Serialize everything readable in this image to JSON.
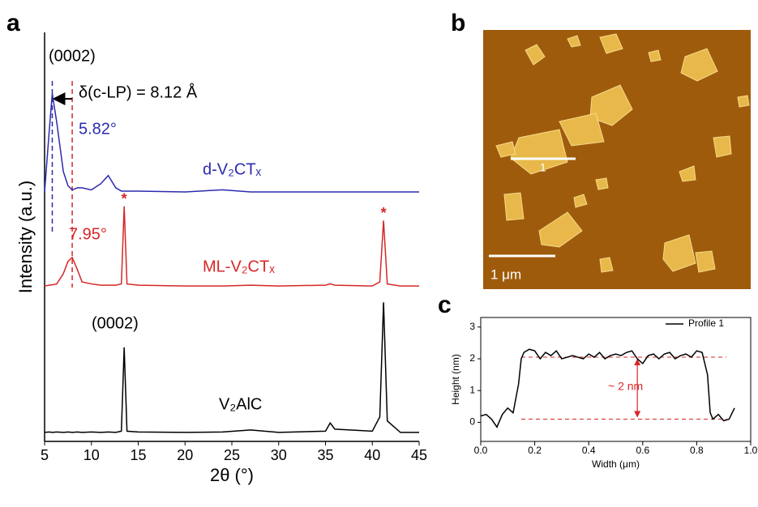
{
  "chart_data": [
    {
      "type": "line",
      "panel_label": "a",
      "xlabel": "2θ (°)",
      "ylabel": "Intensity (a.u.)",
      "x": [
        5,
        5.5,
        5.82,
        6.3,
        7,
        7.5,
        7.95,
        8.5,
        9,
        10,
        11,
        11.8,
        12.6,
        13.2,
        13.5,
        13.8,
        15,
        20,
        24,
        27,
        30,
        35,
        35.5,
        36,
        40,
        40.8,
        41.2,
        41.6,
        43,
        45
      ],
      "series": [
        {
          "name": "d-V₂CTₓ",
          "color": "#2b2bb0",
          "values": [
            6.1,
            7.6,
            8.5,
            7.8,
            6.6,
            6.25,
            6.15,
            6.2,
            6.2,
            6.15,
            6.3,
            6.5,
            6.2,
            6.12,
            6.12,
            6.12,
            6.12,
            6.1,
            6.15,
            6.1,
            6.1,
            6.1,
            6.1,
            6.1,
            6.1,
            6.1,
            6.1,
            6.1,
            6.1,
            6.1
          ]
        },
        {
          "name": "ML-V₂CTₓ",
          "color": "#d62728",
          "values": [
            3.8,
            3.82,
            3.83,
            3.85,
            4.1,
            4.4,
            4.5,
            4.2,
            3.9,
            3.85,
            3.82,
            3.82,
            3.82,
            3.85,
            5.75,
            3.85,
            3.82,
            3.8,
            3.8,
            3.82,
            3.8,
            3.82,
            3.85,
            3.82,
            3.8,
            3.9,
            5.4,
            3.85,
            3.8,
            3.8
          ]
        },
        {
          "name": "V₂AlC",
          "color": "#000000",
          "values": [
            0.22,
            0.23,
            0.22,
            0.23,
            0.22,
            0.23,
            0.22,
            0.23,
            0.22,
            0.23,
            0.22,
            0.23,
            0.22,
            0.25,
            2.3,
            0.25,
            0.23,
            0.22,
            0.23,
            0.28,
            0.22,
            0.25,
            0.45,
            0.3,
            0.25,
            0.6,
            3.4,
            0.5,
            0.22,
            0.22
          ]
        }
      ],
      "xlim": [
        5,
        45
      ],
      "xticks": [
        5,
        10,
        15,
        20,
        25,
        30,
        35,
        40,
        45
      ],
      "ylim": [
        0,
        10
      ],
      "vlines": [
        {
          "value": 5.82,
          "label": "5.82°",
          "color": "#2b2bb0"
        },
        {
          "value": 7.95,
          "label": "7.95°",
          "color": "#d62728"
        }
      ],
      "peak_marker": {
        "label": "*",
        "x": [
          13.5,
          41.2
        ],
        "color": "#d62728"
      },
      "annotations": [
        "(0002)",
        "δ(c-LP) = 8.12 Å",
        "(0002)"
      ]
    },
    {
      "type": "line",
      "panel_label": "c",
      "xlabel": "Width (μm)",
      "ylabel": "Height (nm)",
      "x": [
        0,
        0.02,
        0.04,
        0.06,
        0.08,
        0.1,
        0.12,
        0.14,
        0.15,
        0.16,
        0.18,
        0.2,
        0.22,
        0.24,
        0.26,
        0.28,
        0.3,
        0.32,
        0.34,
        0.36,
        0.38,
        0.4,
        0.42,
        0.44,
        0.46,
        0.48,
        0.5,
        0.52,
        0.54,
        0.56,
        0.58,
        0.6,
        0.62,
        0.64,
        0.66,
        0.68,
        0.7,
        0.72,
        0.74,
        0.76,
        0.78,
        0.8,
        0.82,
        0.84,
        0.85,
        0.86,
        0.88,
        0.9,
        0.92,
        0.94
      ],
      "series": [
        {
          "name": "Profile 1",
          "color": "#000000",
          "values": [
            0.2,
            0.25,
            0.1,
            -0.15,
            0.25,
            0.45,
            0.3,
            1.2,
            2.0,
            2.2,
            2.3,
            2.25,
            2.0,
            2.2,
            2.1,
            2.25,
            2.0,
            2.05,
            2.1,
            2.05,
            2.0,
            2.15,
            2.05,
            2.2,
            2.0,
            2.1,
            2.15,
            2.1,
            2.2,
            2.25,
            2.0,
            1.85,
            2.1,
            2.15,
            2.0,
            2.15,
            2.2,
            2.0,
            2.1,
            2.15,
            2.05,
            2.25,
            2.2,
            1.5,
            0.3,
            0.1,
            0.25,
            0.05,
            0.1,
            0.45
          ]
        }
      ],
      "xlim": [
        0,
        1
      ],
      "xticks": [
        {
          "value": 0,
          "label": "0.0"
        },
        0.2,
        0.4,
        0.6,
        0.8,
        {
          "value": 1,
          "label": "1.0"
        }
      ],
      "ylim": [
        -0.6,
        3.3
      ],
      "yticks": [
        0,
        1,
        2,
        3
      ],
      "legend": "upper right",
      "hlines": [
        {
          "value": 2.05,
          "color": "#d62728"
        },
        {
          "value": 0.1,
          "color": "#d62728"
        }
      ],
      "annotations": [
        "~ 2 nm"
      ]
    }
  ],
  "afm_image": {
    "panel_label": "b",
    "scale_bar": "1 μm",
    "profile_marker": "1"
  }
}
